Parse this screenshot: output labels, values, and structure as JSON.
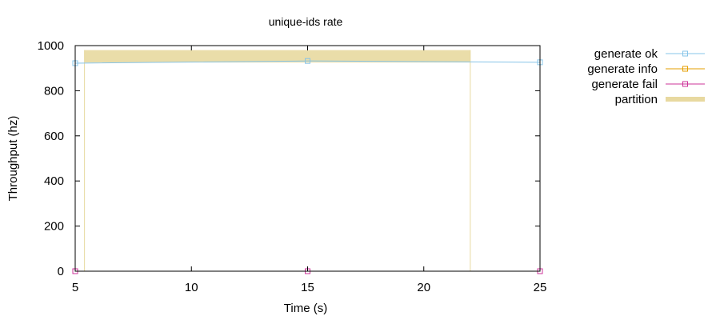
{
  "chart_data": {
    "type": "line",
    "title": "unique-ids rate",
    "xlabel": "Time (s)",
    "ylabel": "Throughput (hz)",
    "xlim": [
      5,
      25
    ],
    "ylim": [
      0,
      1000
    ],
    "xticks": [
      5,
      10,
      15,
      20,
      25
    ],
    "yticks": [
      0,
      200,
      400,
      600,
      800,
      1000
    ],
    "grid": false,
    "legend_position": "outside-right",
    "series": [
      {
        "name": "generate ok",
        "color": "#87c4e8",
        "marker": "square",
        "points": [
          [
            5,
            922
          ],
          [
            15,
            932
          ],
          [
            25,
            926
          ]
        ]
      },
      {
        "name": "generate info",
        "color": "#e69f00",
        "marker": "square",
        "points": []
      },
      {
        "name": "generate fail",
        "color": "#cc3399",
        "marker": "square",
        "points": [
          [
            5,
            0
          ],
          [
            15,
            0
          ],
          [
            25,
            0
          ]
        ]
      }
    ],
    "partition": {
      "name": "partition",
      "color": "#e8d9a0",
      "start": 5.4,
      "end": 22.0
    }
  }
}
